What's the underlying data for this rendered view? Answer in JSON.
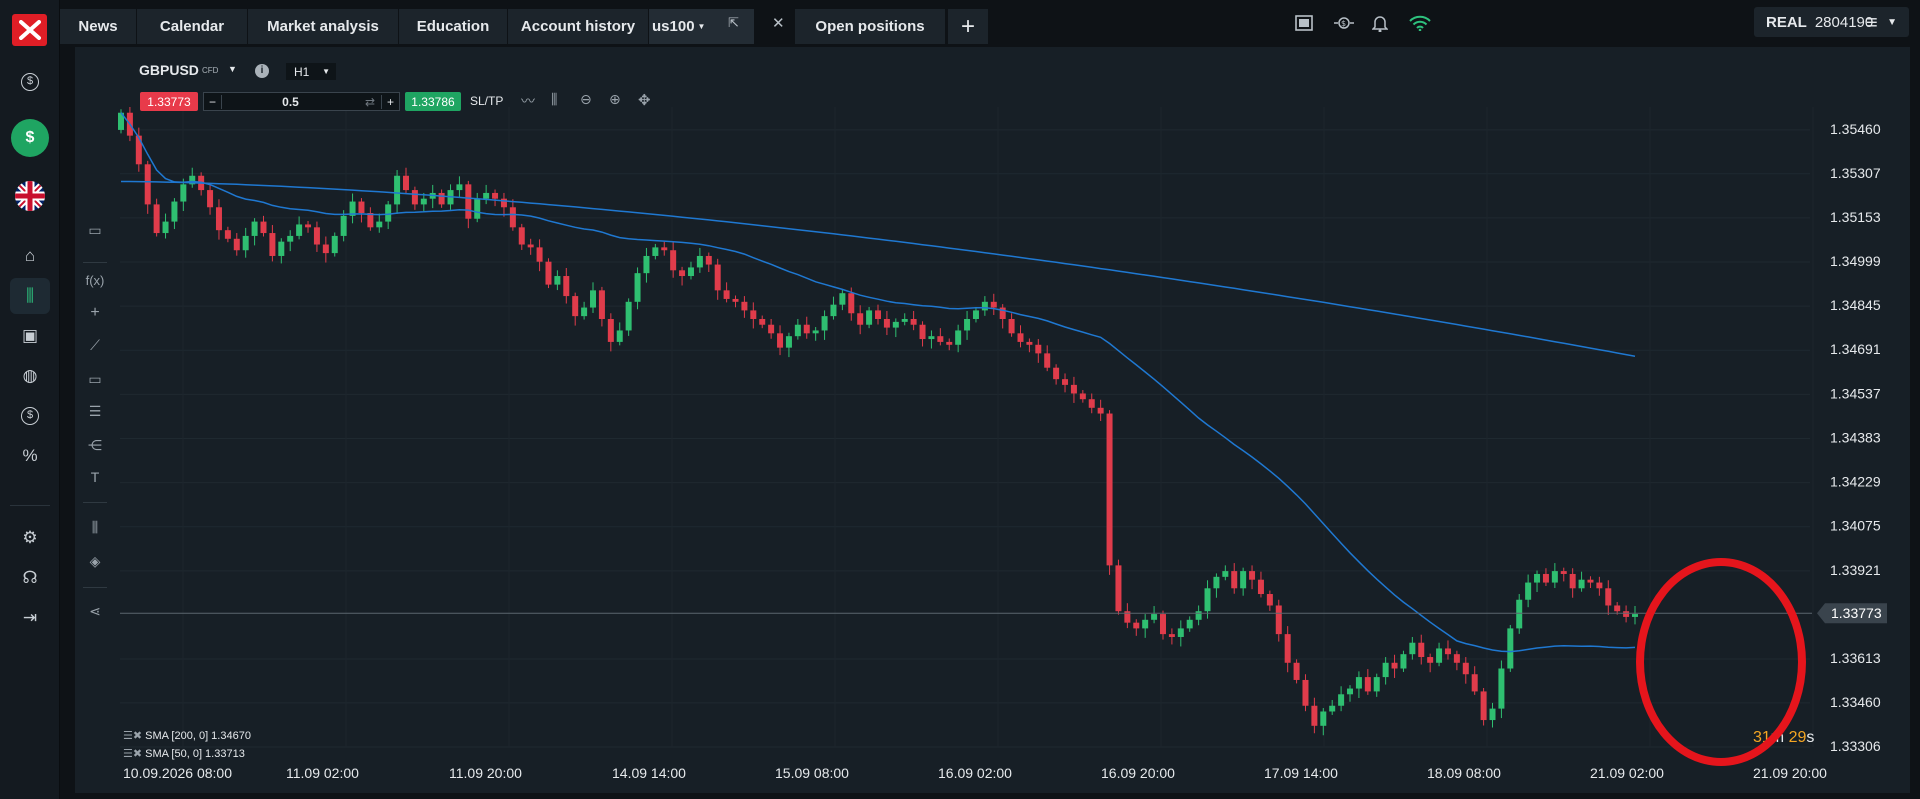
{
  "sidebar": {
    "items": [
      {
        "name": "dollar-circle-icon",
        "glyph": "$"
      },
      {
        "name": "dollar-green-icon",
        "glyph": "$"
      },
      {
        "name": "uk-flag-icon",
        "glyph": ""
      },
      {
        "name": "home-icon",
        "glyph": "⌂"
      },
      {
        "name": "candles-icon",
        "glyph": "⫼"
      },
      {
        "name": "calendar-icon",
        "glyph": "▣"
      },
      {
        "name": "piggy-bank-icon",
        "glyph": "◍"
      },
      {
        "name": "coins-icon",
        "glyph": "$"
      },
      {
        "name": "percent-icon",
        "glyph": "%"
      },
      {
        "name": "settings-icon",
        "glyph": "⚙"
      },
      {
        "name": "headset-icon",
        "glyph": "☊"
      },
      {
        "name": "logout-icon",
        "glyph": "⇥"
      }
    ]
  },
  "tabs": [
    "News",
    "Calendar",
    "Market analysis",
    "Education",
    "Account history",
    "us100",
    "Open positions"
  ],
  "account": {
    "type": "REAL",
    "number": "2804190"
  },
  "chart_header": {
    "symbol": "GBPUSD",
    "symbol_suffix": "CFD",
    "timeframe": "H1",
    "sell_price": "1.33773",
    "volume": "0.5",
    "buy_price": "1.33786",
    "sltp": "SL/TP"
  },
  "indicators": [
    {
      "label": "SMA [200, 0] 1.34670"
    },
    {
      "label": "SMA [50, 0] 1.33713"
    }
  ],
  "timer": {
    "minutes": "31",
    "m": "m",
    "seconds": "29",
    "s": "s"
  },
  "chart_data": {
    "type": "candlestick",
    "symbol": "GBPUSD",
    "timeframe": "H1",
    "y_ticks": [
      "1.35460",
      "1.35307",
      "1.35153",
      "1.34999",
      "1.34845",
      "1.34691",
      "1.34537",
      "1.34383",
      "1.34229",
      "1.34075",
      "1.33921",
      "1.33613",
      "1.33460",
      "1.33306"
    ],
    "x_ticks": [
      "10.09.2026 08:00",
      "11.09 02:00",
      "11.09 20:00",
      "14.09 14:00",
      "15.09 08:00",
      "16.09 02:00",
      "16.09 20:00",
      "17.09 14:00",
      "18.09 08:00",
      "21.09 02:00",
      "21.09 20:00"
    ],
    "current_price": "1.33773",
    "ylim": [
      1.33306,
      1.3554
    ],
    "closes": [
      1.3552,
      1.3544,
      1.3534,
      1.352,
      1.351,
      1.3514,
      1.3521,
      1.3527,
      1.353,
      1.3525,
      1.3519,
      1.3511,
      1.3508,
      1.3504,
      1.3509,
      1.3514,
      1.351,
      1.3502,
      1.3507,
      1.3509,
      1.3513,
      1.3512,
      1.3506,
      1.3503,
      1.3509,
      1.3516,
      1.3521,
      1.3517,
      1.3512,
      1.3514,
      1.352,
      1.353,
      1.3525,
      1.352,
      1.3522,
      1.3524,
      1.352,
      1.3525,
      1.3527,
      1.3515,
      1.3522,
      1.3524,
      1.3522,
      1.3519,
      1.3512,
      1.3506,
      1.3505,
      1.35,
      1.3492,
      1.3495,
      1.3488,
      1.3481,
      1.3484,
      1.349,
      1.348,
      1.3472,
      1.3476,
      1.3486,
      1.3496,
      1.3502,
      1.3505,
      1.3504,
      1.3497,
      1.3495,
      1.3498,
      1.3502,
      1.3499,
      1.349,
      1.3487,
      1.3486,
      1.3483,
      1.348,
      1.3478,
      1.3475,
      1.347,
      1.3474,
      1.3478,
      1.3475,
      1.3476,
      1.3481,
      1.3485,
      1.3489,
      1.3482,
      1.3478,
      1.3483,
      1.348,
      1.3477,
      1.3479,
      1.348,
      1.3478,
      1.3473,
      1.3474,
      1.3472,
      1.3471,
      1.3476,
      1.348,
      1.3483,
      1.3486,
      1.3484,
      1.348,
      1.3475,
      1.3472,
      1.3471,
      1.3468,
      1.3463,
      1.3459,
      1.3457,
      1.3454,
      1.3452,
      1.3449,
      1.3447,
      1.3394,
      1.3378,
      1.3374,
      1.3372,
      1.3375,
      1.3377,
      1.337,
      1.3369,
      1.3372,
      1.3375,
      1.3378,
      1.3386,
      1.339,
      1.3392,
      1.3386,
      1.3392,
      1.3389,
      1.3384,
      1.338,
      1.337,
      1.336,
      1.3354,
      1.3345,
      1.3338,
      1.3343,
      1.3345,
      1.3349,
      1.3351,
      1.3355,
      1.335,
      1.3355,
      1.336,
      1.3358,
      1.3363,
      1.3367,
      1.3362,
      1.336,
      1.3365,
      1.3363,
      1.336,
      1.3356,
      1.335,
      1.334,
      1.3344,
      1.3358,
      1.3372,
      1.3382,
      1.3388,
      1.3391,
      1.3388,
      1.3392,
      1.3391,
      1.3386,
      1.3389,
      1.3388,
      1.3386,
      1.338,
      1.3378,
      1.3376,
      1.3377
    ]
  }
}
